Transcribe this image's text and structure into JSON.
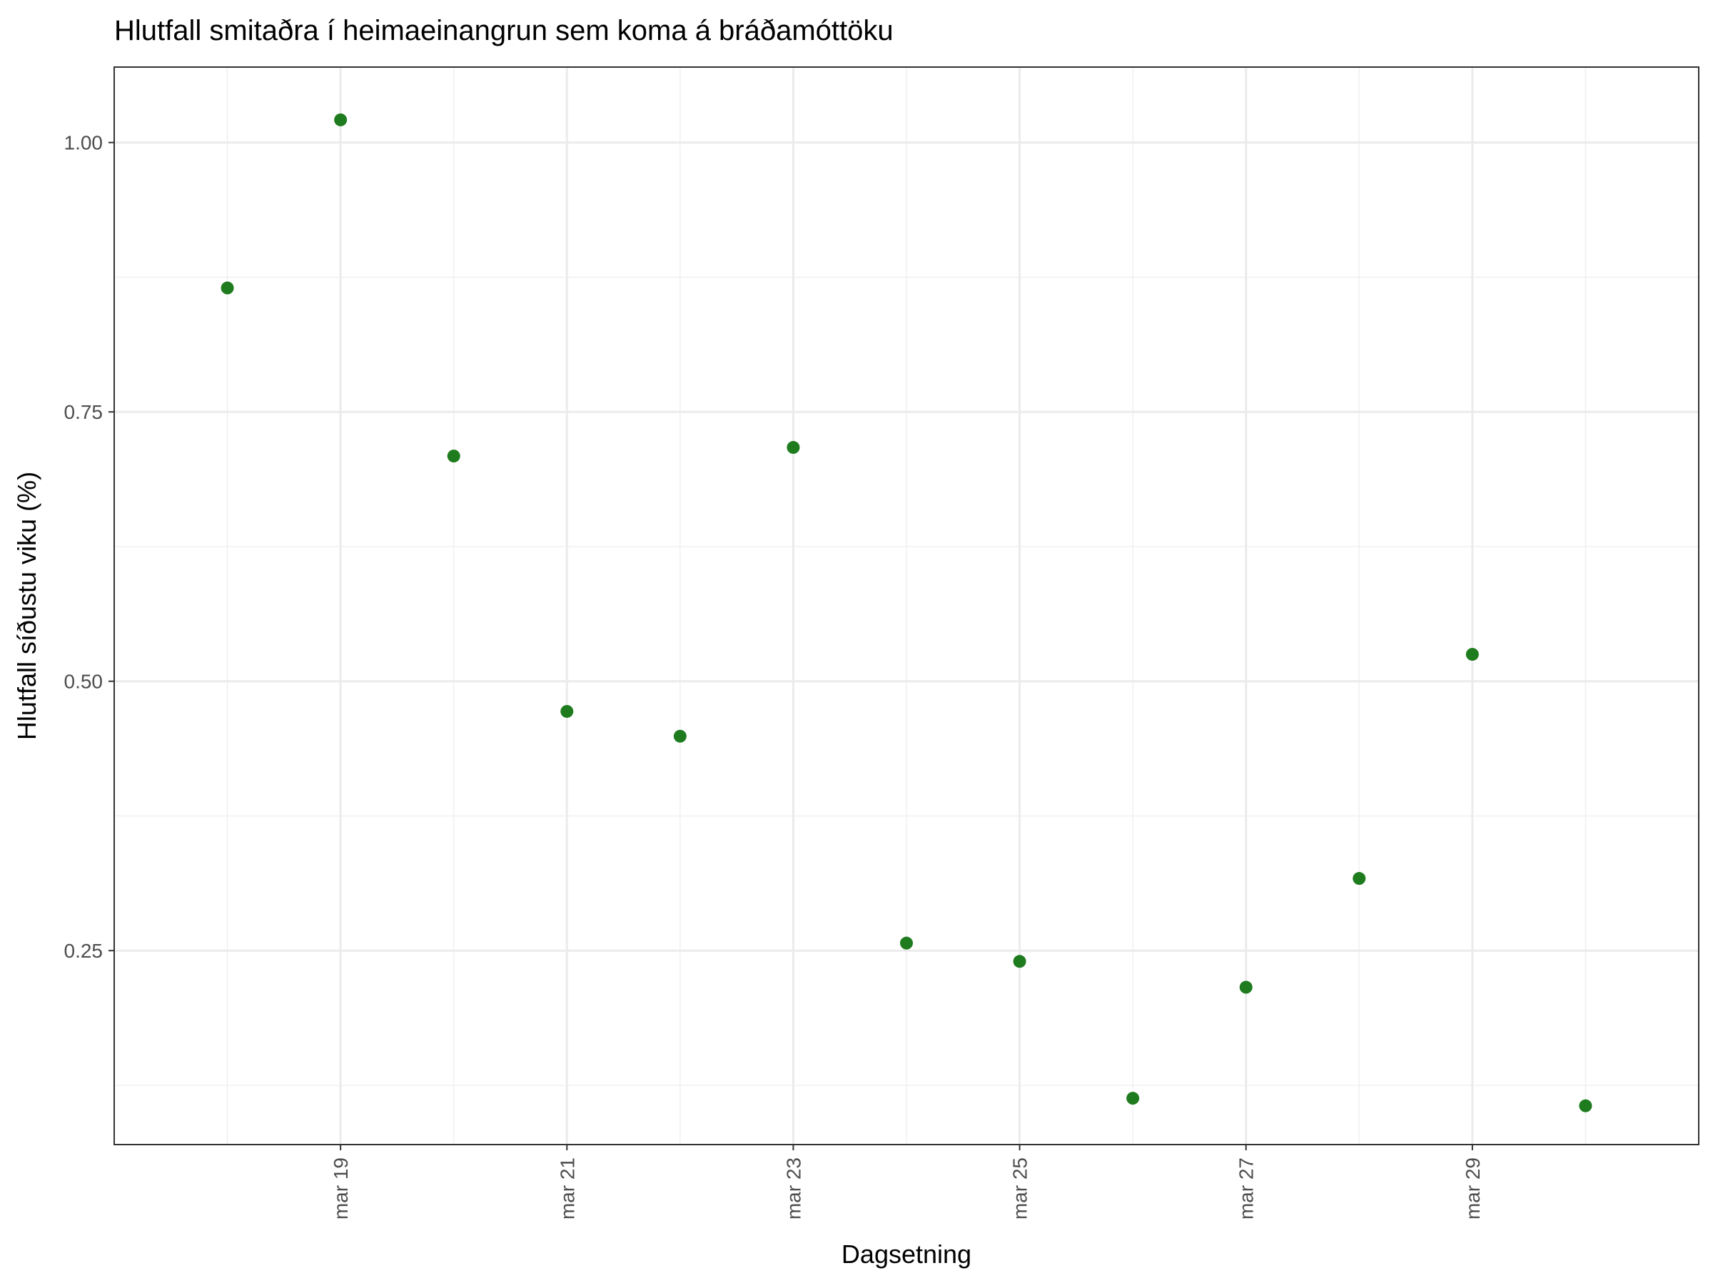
{
  "chart_data": {
    "type": "scatter",
    "title": "Hlutfall smitaðra í heimaeinangrun sem koma á bráðamóttöku",
    "xlabel": "Dagsetning",
    "ylabel": "Hlutfall síðustu viku (%)",
    "x_tick_labels": [
      "mar 19",
      "mar 21",
      "mar 23",
      "mar 25",
      "mar 27",
      "mar 29"
    ],
    "y_tick_labels": [
      "0.25",
      "0.50",
      "0.75",
      "1.00"
    ],
    "xlim": [
      "2020-03-17",
      "2020-03-31"
    ],
    "ylim": [
      0.07,
      1.07
    ],
    "grid": true,
    "marker_color": "#1e7b1e",
    "points": [
      {
        "x": "2020-03-18",
        "y": 0.865
      },
      {
        "x": "2020-03-19",
        "y": 1.021
      },
      {
        "x": "2020-03-20",
        "y": 0.709
      },
      {
        "x": "2020-03-21",
        "y": 0.472
      },
      {
        "x": "2020-03-22",
        "y": 0.449
      },
      {
        "x": "2020-03-23",
        "y": 0.717
      },
      {
        "x": "2020-03-24",
        "y": 0.257
      },
      {
        "x": "2020-03-25",
        "y": 0.24
      },
      {
        "x": "2020-03-26",
        "y": 0.113
      },
      {
        "x": "2020-03-27",
        "y": 0.216
      },
      {
        "x": "2020-03-28",
        "y": 0.317
      },
      {
        "x": "2020-03-29",
        "y": 0.525
      },
      {
        "x": "2020-03-30",
        "y": 0.106
      }
    ]
  }
}
